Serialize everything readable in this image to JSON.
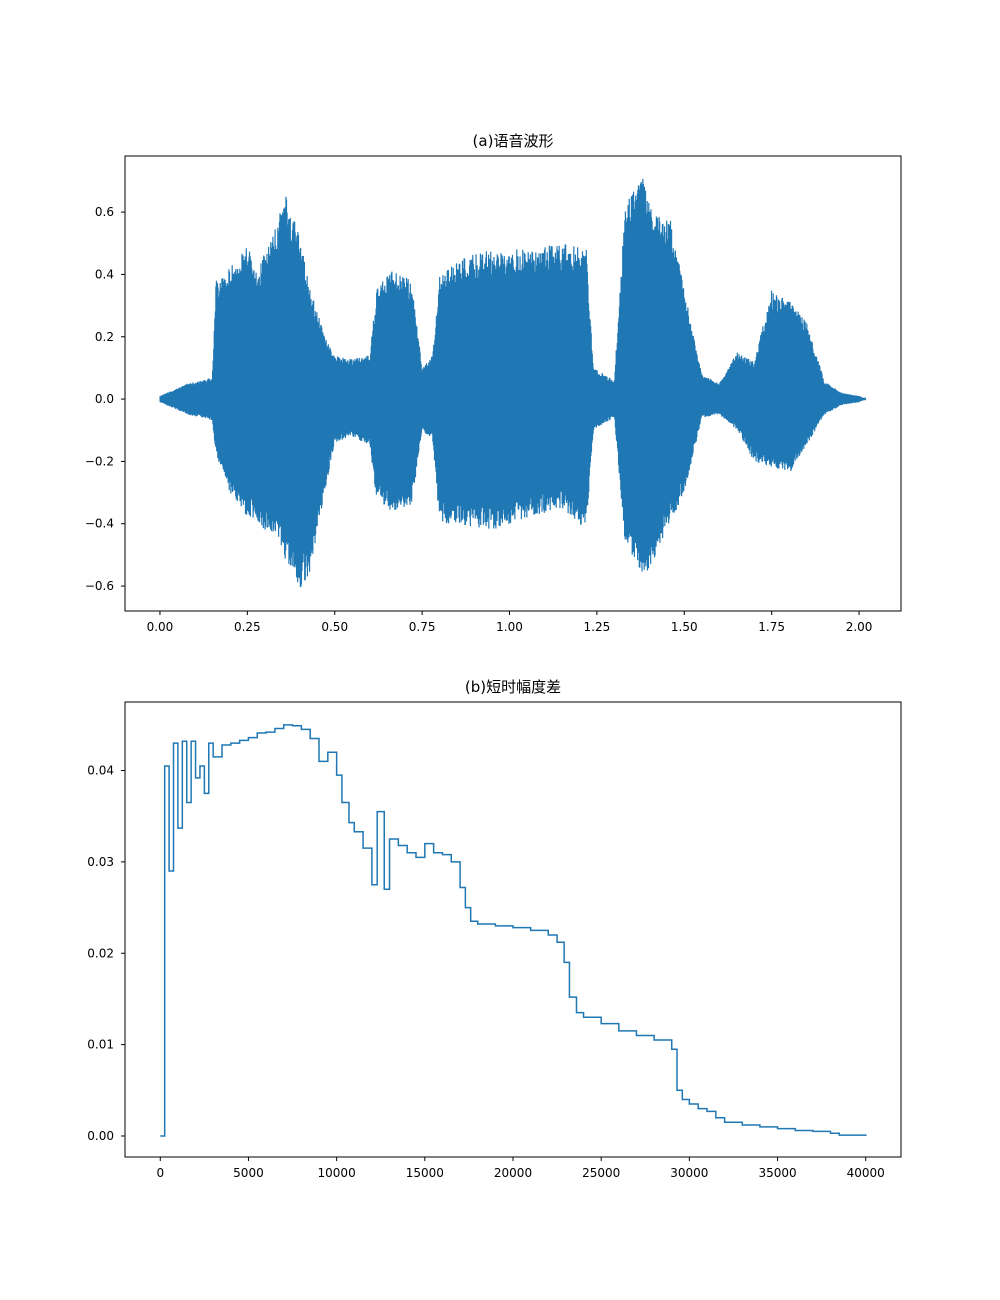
{
  "chart_data": [
    {
      "type": "line",
      "title": "(a)语音波形",
      "xlabel": "",
      "ylabel": "",
      "xlim": [
        -0.1,
        2.12
      ],
      "ylim": [
        -0.68,
        0.78
      ],
      "xticks": [
        0.0,
        0.25,
        0.5,
        0.75,
        1.0,
        1.25,
        1.5,
        1.75,
        2.0
      ],
      "xtick_labels": [
        "0.00",
        "0.25",
        "0.50",
        "0.75",
        "1.00",
        "1.25",
        "1.50",
        "1.75",
        "2.00"
      ],
      "yticks": [
        -0.6,
        -0.4,
        -0.2,
        0.0,
        0.2,
        0.4,
        0.6
      ],
      "ytick_labels": [
        "−0.6",
        "−0.4",
        "−0.2",
        "0.0",
        "0.2",
        "0.4",
        "0.6"
      ],
      "grid": false,
      "line_color": "#1f77b4",
      "envelope": {
        "t": [
          0.0,
          0.04,
          0.08,
          0.12,
          0.15,
          0.16,
          0.2,
          0.25,
          0.28,
          0.33,
          0.36,
          0.4,
          0.43,
          0.48,
          0.5,
          0.55,
          0.6,
          0.62,
          0.66,
          0.72,
          0.75,
          0.78,
          0.8,
          0.85,
          0.95,
          1.05,
          1.15,
          1.22,
          1.24,
          1.3,
          1.33,
          1.38,
          1.41,
          1.46,
          1.5,
          1.55,
          1.6,
          1.65,
          1.7,
          1.75,
          1.8,
          1.85,
          1.9,
          1.95,
          2.0,
          2.02
        ],
        "upper": [
          0.01,
          0.03,
          0.05,
          0.06,
          0.07,
          0.38,
          0.42,
          0.5,
          0.42,
          0.55,
          0.66,
          0.52,
          0.35,
          0.18,
          0.14,
          0.13,
          0.14,
          0.35,
          0.42,
          0.38,
          0.1,
          0.14,
          0.4,
          0.45,
          0.48,
          0.48,
          0.5,
          0.48,
          0.1,
          0.06,
          0.62,
          0.72,
          0.6,
          0.58,
          0.35,
          0.08,
          0.05,
          0.15,
          0.12,
          0.35,
          0.32,
          0.25,
          0.06,
          0.02,
          0.01,
          0.0
        ],
        "lower": [
          -0.01,
          -0.03,
          -0.05,
          -0.06,
          -0.07,
          -0.18,
          -0.3,
          -0.38,
          -0.4,
          -0.45,
          -0.52,
          -0.62,
          -0.55,
          -0.25,
          -0.14,
          -0.12,
          -0.15,
          -0.32,
          -0.36,
          -0.34,
          -0.1,
          -0.13,
          -0.4,
          -0.4,
          -0.42,
          -0.38,
          -0.35,
          -0.42,
          -0.1,
          -0.06,
          -0.45,
          -0.58,
          -0.52,
          -0.4,
          -0.3,
          -0.06,
          -0.05,
          -0.1,
          -0.2,
          -0.22,
          -0.24,
          -0.15,
          -0.05,
          -0.02,
          -0.01,
          0.0
        ]
      }
    },
    {
      "type": "line",
      "title": "(b)短时幅度差",
      "xlabel": "",
      "ylabel": "",
      "xlim": [
        -2000,
        42000
      ],
      "ylim": [
        -0.0023,
        0.0475
      ],
      "xticks": [
        0,
        5000,
        10000,
        15000,
        20000,
        25000,
        30000,
        35000,
        40000
      ],
      "xtick_labels": [
        "0",
        "5000",
        "10000",
        "15000",
        "20000",
        "25000",
        "30000",
        "35000",
        "40000"
      ],
      "yticks": [
        0.0,
        0.01,
        0.02,
        0.03,
        0.04
      ],
      "ytick_labels": [
        "0.00",
        "0.01",
        "0.02",
        "0.03",
        "0.04"
      ],
      "grid": false,
      "line_color": "#1f77b4",
      "step": true,
      "x": [
        0,
        250,
        500,
        750,
        1000,
        1250,
        1500,
        1750,
        2000,
        2250,
        2500,
        2750,
        3000,
        3500,
        4000,
        4500,
        5000,
        5500,
        6000,
        6500,
        7000,
        7500,
        8000,
        8500,
        9000,
        9500,
        10000,
        10300,
        10700,
        11000,
        11500,
        12000,
        12300,
        12700,
        13000,
        13500,
        14000,
        14500,
        15000,
        15500,
        16000,
        16500,
        17000,
        17300,
        17600,
        18000,
        19000,
        20000,
        21000,
        22000,
        22500,
        22900,
        23200,
        23600,
        24000,
        25000,
        26000,
        27000,
        28000,
        29000,
        29300,
        29600,
        30000,
        30500,
        31000,
        31500,
        32000,
        33000,
        34000,
        35000,
        36000,
        37000,
        38000,
        38500,
        40000
      ],
      "y": [
        0.0,
        0.0405,
        0.029,
        0.043,
        0.0337,
        0.0432,
        0.0365,
        0.0432,
        0.0392,
        0.0405,
        0.0375,
        0.043,
        0.0415,
        0.0428,
        0.043,
        0.0433,
        0.0436,
        0.0441,
        0.0442,
        0.0446,
        0.045,
        0.0449,
        0.0445,
        0.0435,
        0.041,
        0.042,
        0.0395,
        0.0365,
        0.0343,
        0.0333,
        0.0315,
        0.0275,
        0.0355,
        0.027,
        0.0325,
        0.0318,
        0.031,
        0.0305,
        0.032,
        0.031,
        0.0308,
        0.03,
        0.0272,
        0.025,
        0.0235,
        0.0232,
        0.023,
        0.0228,
        0.0225,
        0.022,
        0.0212,
        0.019,
        0.0152,
        0.0135,
        0.013,
        0.0123,
        0.0115,
        0.011,
        0.0105,
        0.0095,
        0.005,
        0.004,
        0.0035,
        0.003,
        0.0027,
        0.002,
        0.0015,
        0.0012,
        0.001,
        0.0008,
        0.0006,
        0.0005,
        0.0003,
        0.0001,
        0.0
      ]
    }
  ]
}
